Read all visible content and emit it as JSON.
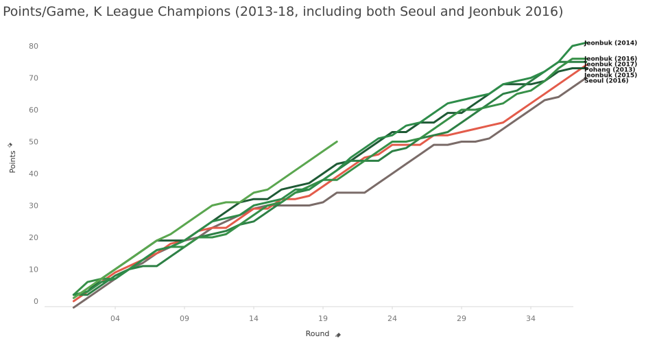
{
  "chart_data": {
    "type": "line",
    "title": "Points/Game, K League Champions (2013-18, including both Seoul and Jeonbuk 2016)",
    "xlabel": "Round",
    "ylabel": "Points",
    "x_ticks": [
      "04",
      "09",
      "14",
      "19",
      "24",
      "29",
      "34"
    ],
    "x_tick_values": [
      4,
      9,
      14,
      19,
      24,
      29,
      34
    ],
    "y_ticks": [
      0,
      10,
      20,
      30,
      40,
      50,
      60,
      70,
      80
    ],
    "xlim": [
      0,
      38
    ],
    "ylim": [
      -2,
      84
    ],
    "grid": false,
    "series": [
      {
        "name": "Seoul (2016)",
        "color": "#7a6b68",
        "x": [
          1,
          2,
          3,
          4,
          5,
          6,
          7,
          8,
          9,
          10,
          11,
          12,
          13,
          14,
          15,
          16,
          17,
          18,
          19,
          20,
          21,
          22,
          23,
          24,
          25,
          26,
          27,
          28,
          29,
          30,
          31,
          32,
          33,
          34,
          35,
          36,
          37,
          38
        ],
        "y": [
          -2,
          1,
          4,
          7,
          10,
          12,
          15,
          17,
          19,
          20,
          23,
          25,
          27,
          29,
          30,
          30,
          30,
          30,
          31,
          34,
          34,
          34,
          37,
          40,
          43,
          46,
          49,
          49,
          50,
          50,
          51,
          54,
          57,
          60,
          63,
          64,
          67,
          70
        ]
      },
      {
        "name": "Pohang (2013)",
        "color": "#e35b4a",
        "x": [
          1,
          2,
          3,
          4,
          5,
          6,
          7,
          8,
          9,
          10,
          11,
          12,
          13,
          14,
          15,
          16,
          17,
          18,
          19,
          20,
          21,
          22,
          23,
          24,
          25,
          26,
          27,
          28,
          29,
          30,
          31,
          32,
          33,
          34,
          35,
          36,
          37,
          38
        ],
        "y": [
          0,
          3,
          6,
          9,
          11,
          13,
          15,
          18,
          19,
          22,
          23,
          23,
          26,
          29,
          29,
          32,
          32,
          33,
          36,
          39,
          42,
          45,
          46,
          49,
          49,
          49,
          52,
          52,
          53,
          54,
          55,
          56,
          59,
          62,
          65,
          68,
          71,
          74
        ]
      },
      {
        "name": "Jeonbuk (2015)",
        "color": "#1e5a35",
        "x": [
          1,
          2,
          3,
          4,
          5,
          6,
          7,
          8,
          9,
          10,
          11,
          12,
          13,
          14,
          15,
          16,
          17,
          18,
          19,
          20,
          21,
          22,
          23,
          24,
          25,
          26,
          27,
          28,
          29,
          30,
          31,
          32,
          33,
          34,
          35,
          36,
          37,
          38
        ],
        "y": [
          2,
          3,
          7,
          10,
          13,
          16,
          19,
          19,
          19,
          22,
          25,
          28,
          31,
          32,
          32,
          35,
          36,
          37,
          40,
          43,
          44,
          47,
          50,
          53,
          53,
          56,
          56,
          59,
          59,
          62,
          65,
          68,
          68,
          68,
          69,
          72,
          73,
          73
        ]
      },
      {
        "name": "Jeonbuk (2017)",
        "color": "#2d8045",
        "x": [
          1,
          2,
          3,
          4,
          5,
          6,
          7,
          8,
          9,
          10,
          11,
          12,
          13,
          14,
          15,
          16,
          17,
          18,
          19,
          20,
          21,
          22,
          23,
          24,
          25,
          26,
          27,
          28,
          29,
          30,
          31,
          32,
          33,
          34,
          35,
          36,
          37,
          38
        ],
        "y": [
          2,
          2,
          5,
          8,
          10,
          11,
          11,
          14,
          17,
          20,
          21,
          22,
          24,
          25,
          28,
          31,
          34,
          35,
          38,
          41,
          44,
          44,
          44,
          47,
          48,
          51,
          52,
          53,
          56,
          59,
          62,
          65,
          66,
          69,
          72,
          75,
          75,
          75
        ]
      },
      {
        "name": "Jeonbuk (2016)",
        "color": "#379048",
        "x": [
          1,
          2,
          3,
          4,
          5,
          6,
          7,
          8,
          9,
          10,
          11,
          12,
          13,
          14,
          15,
          16,
          17,
          18,
          19,
          20,
          21,
          22,
          23,
          24,
          25,
          26,
          27,
          28,
          29,
          30,
          31,
          32,
          33,
          34,
          35,
          36,
          37,
          38
        ],
        "y": [
          2,
          6,
          7,
          7,
          10,
          13,
          16,
          17,
          17,
          20,
          20,
          21,
          24,
          27,
          30,
          31,
          34,
          36,
          38,
          38,
          41,
          44,
          47,
          50,
          50,
          51,
          54,
          57,
          60,
          60,
          61,
          62,
          65,
          66,
          69,
          73,
          76,
          76
        ]
      },
      {
        "name": "Jeonbuk (2014)",
        "color": "#2e8c4a",
        "x": [
          1,
          2,
          3,
          4,
          5,
          6,
          7,
          8,
          9,
          10,
          11,
          12,
          13,
          14,
          15,
          16,
          17,
          18,
          19,
          20,
          21,
          22,
          23,
          24,
          25,
          26,
          27,
          28,
          29,
          30,
          31,
          32,
          33,
          34,
          35,
          36,
          37,
          38
        ],
        "y": [
          2,
          3,
          6,
          7,
          10,
          13,
          16,
          17,
          19,
          22,
          25,
          26,
          27,
          30,
          31,
          32,
          35,
          35,
          38,
          41,
          45,
          48,
          51,
          52,
          55,
          56,
          59,
          62,
          63,
          64,
          65,
          68,
          69,
          70,
          72,
          75,
          80,
          81
        ]
      },
      {
        "name": "",
        "color": "#5aa64f",
        "x": [
          1,
          2,
          3,
          4,
          5,
          6,
          7,
          8,
          9,
          10,
          11,
          12,
          13,
          14,
          15,
          16,
          17,
          18,
          19,
          20
        ],
        "y": [
          1,
          4,
          7,
          10,
          13,
          16,
          19,
          21,
          24,
          27,
          30,
          31,
          31,
          34,
          35,
          38,
          41,
          44,
          47,
          50
        ]
      }
    ]
  }
}
